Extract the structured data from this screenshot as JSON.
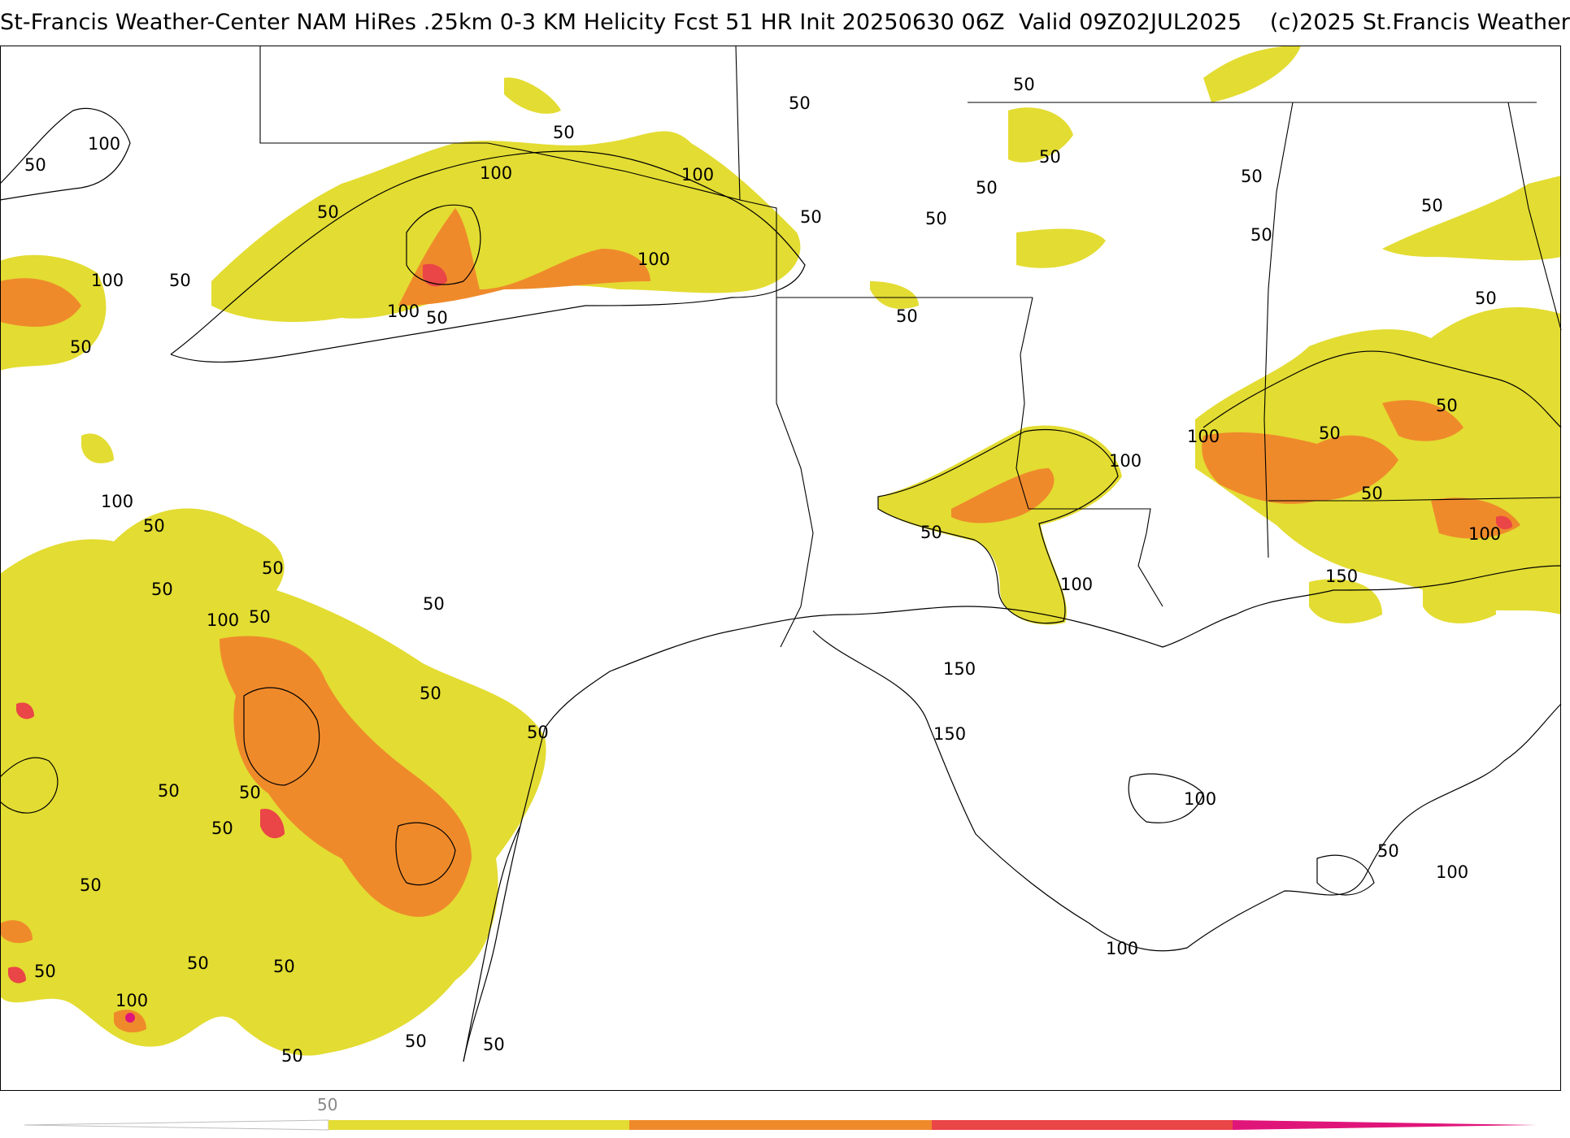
{
  "header": {
    "title": "St-Francis Weather-Center NAM HiRes .25km 0-3 KM Helicity Fcst 51 HR Init 20250630 06Z  Valid 09Z02JUL2025    (c)2025 St.Francis Weather"
  },
  "map": {
    "fill_colors": {
      "band_50_100": "#e3dc32",
      "band_100_150": "#ef8a2b",
      "band_150_200": "#ea4547",
      "band_200_plus": "#e0157a"
    },
    "contour_labels": [
      {
        "id": "l1",
        "text": "100"
      },
      {
        "id": "l2",
        "text": "50"
      },
      {
        "id": "l3",
        "text": "50"
      },
      {
        "id": "l4",
        "text": "100"
      },
      {
        "id": "l5",
        "text": "50"
      },
      {
        "id": "l6",
        "text": "50"
      },
      {
        "id": "l7",
        "text": "100"
      },
      {
        "id": "l8",
        "text": "50"
      },
      {
        "id": "l9",
        "text": "100"
      },
      {
        "id": "l10",
        "text": "50"
      },
      {
        "id": "l11",
        "text": "100"
      },
      {
        "id": "l12",
        "text": "100"
      },
      {
        "id": "l13",
        "text": "50"
      },
      {
        "id": "l14",
        "text": "50"
      },
      {
        "id": "l15",
        "text": "50"
      },
      {
        "id": "l16",
        "text": "50"
      },
      {
        "id": "l17",
        "text": "50"
      },
      {
        "id": "l18",
        "text": "50"
      },
      {
        "id": "l19",
        "text": "50"
      },
      {
        "id": "l20",
        "text": "50"
      },
      {
        "id": "l21",
        "text": "50"
      },
      {
        "id": "l22",
        "text": "50"
      },
      {
        "id": "l23",
        "text": "50"
      },
      {
        "id": "l24",
        "text": "50"
      },
      {
        "id": "l25",
        "text": "100"
      },
      {
        "id": "l26",
        "text": "50"
      },
      {
        "id": "l27",
        "text": "100"
      },
      {
        "id": "l28",
        "text": "150"
      },
      {
        "id": "l29",
        "text": "100"
      },
      {
        "id": "l30",
        "text": "50"
      },
      {
        "id": "l31",
        "text": "100"
      },
      {
        "id": "l32",
        "text": "150"
      },
      {
        "id": "l33",
        "text": "150"
      },
      {
        "id": "l34",
        "text": "100"
      },
      {
        "id": "l35",
        "text": "50"
      },
      {
        "id": "l36",
        "text": "100"
      },
      {
        "id": "l37",
        "text": "100"
      },
      {
        "id": "l38",
        "text": "100"
      },
      {
        "id": "l39",
        "text": "50"
      },
      {
        "id": "l40",
        "text": "50"
      },
      {
        "id": "l41",
        "text": "50"
      },
      {
        "id": "l42",
        "text": "100"
      },
      {
        "id": "l43",
        "text": "50"
      },
      {
        "id": "l44",
        "text": "50"
      },
      {
        "id": "l45",
        "text": "50"
      },
      {
        "id": "l46",
        "text": "50"
      },
      {
        "id": "l47",
        "text": "50"
      },
      {
        "id": "l48",
        "text": "50"
      },
      {
        "id": "l49",
        "text": "50"
      },
      {
        "id": "l50",
        "text": "50"
      },
      {
        "id": "l51",
        "text": "50"
      },
      {
        "id": "l52",
        "text": "50"
      },
      {
        "id": "l53",
        "text": "50"
      },
      {
        "id": "l54",
        "text": "100"
      },
      {
        "id": "l55",
        "text": "50"
      },
      {
        "id": "l56",
        "text": "50"
      },
      {
        "id": "l57",
        "text": "50"
      },
      {
        "id": "l58",
        "text": "50"
      }
    ]
  },
  "legend": {
    "tick_label": "50",
    "colors": [
      "#e3dc32",
      "#ef8a2b",
      "#ea4547",
      "#e0157a"
    ]
  }
}
